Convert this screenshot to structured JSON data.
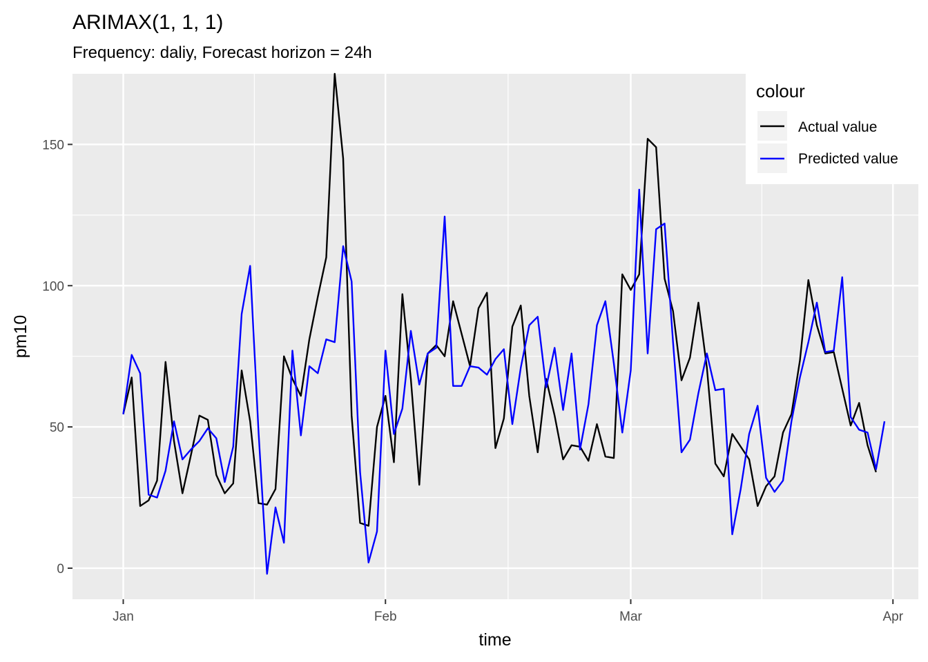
{
  "chart_data": {
    "type": "line",
    "title": "ARIMAX(1, 1, 1)",
    "subtitle": "Frequency: daliy, Forecast horizon = 24h",
    "xlabel": "time",
    "ylabel": "pm10",
    "x_start": "2020-01-01",
    "x_ticks": [
      {
        "date": "2020-01-01",
        "label": "Jan"
      },
      {
        "date": "2020-02-01",
        "label": "Feb"
      },
      {
        "date": "2020-03-01",
        "label": "Mar"
      },
      {
        "date": "2020-04-01",
        "label": "Apr"
      }
    ],
    "xlim": [
      "2019-12-26",
      "2020-04-04"
    ],
    "ylim": [
      -11,
      175
    ],
    "y_ticks": [
      0,
      50,
      100,
      150
    ],
    "grid": true,
    "legend": {
      "title": "colour",
      "position": "right-top"
    },
    "series": [
      {
        "name": "Actual value",
        "color": "#000000",
        "values": [
          54.5,
          67.5,
          22,
          24,
          31,
          73,
          45,
          26.5,
          40,
          54,
          52.5,
          33,
          26.5,
          30,
          70,
          52,
          23,
          22.5,
          28,
          75,
          67,
          61,
          81,
          96,
          110,
          175,
          145,
          54,
          16,
          15,
          50,
          61,
          37.5,
          97,
          67,
          29.5,
          76,
          79,
          75,
          94.5,
          83,
          71.5,
          92,
          97.5,
          42.5,
          53,
          85.5,
          93,
          61,
          41,
          67,
          54,
          38.5,
          43.5,
          43,
          38,
          51,
          39.5,
          39,
          104,
          98.5,
          104,
          152,
          149,
          102.5,
          91,
          66.5,
          74.5,
          94,
          71,
          37,
          32.5,
          47.5,
          43,
          38.5,
          22,
          29,
          32.5,
          48,
          54.5,
          73.5,
          102,
          86,
          76,
          76.5,
          63.5,
          50.5,
          58.5,
          43.5,
          34
        ]
      },
      {
        "name": "Predicted value",
        "color": "#0000ff",
        "values": [
          54.5,
          75.5,
          69,
          26,
          25,
          34.5,
          52,
          38.5,
          42,
          45,
          49.5,
          46,
          30.5,
          43,
          90,
          107,
          48,
          -2,
          21.5,
          9,
          77,
          47,
          71.5,
          69,
          81,
          80,
          114,
          101.5,
          34,
          2,
          13,
          77,
          47.5,
          56.5,
          84,
          65,
          76,
          78,
          124.5,
          64.5,
          64.5,
          71.5,
          71,
          68.5,
          74,
          77.5,
          51,
          71,
          86,
          89,
          64,
          78,
          56,
          76,
          42,
          58,
          86,
          94.5,
          72.5,
          48,
          70,
          134,
          76,
          120,
          122,
          80,
          41,
          45.5,
          62,
          76,
          63,
          63.5,
          12,
          28,
          47.5,
          57.5,
          32,
          27,
          31,
          52,
          67.5,
          80,
          94,
          76.5,
          77,
          103,
          53.5,
          49,
          48,
          35,
          52
        ]
      }
    ]
  }
}
